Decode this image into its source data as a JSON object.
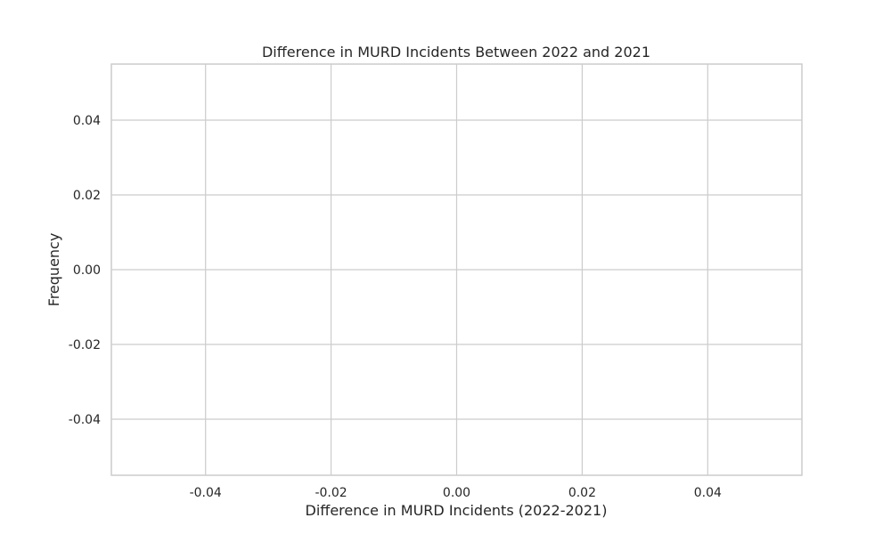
{
  "chart_data": {
    "type": "bar",
    "title": "Difference in MURD Incidents Between 2022 and 2021",
    "xlabel": "Difference in MURD Incidents (2022-2021)",
    "ylabel": "Frequency",
    "xlim": [
      -0.055,
      0.055
    ],
    "ylim": [
      -0.055,
      0.055
    ],
    "xticks": [
      -0.04,
      -0.02,
      0.0,
      0.02,
      0.04
    ],
    "yticks": [
      -0.04,
      -0.02,
      0.0,
      0.02,
      0.04
    ],
    "xtick_labels": [
      "-0.04",
      "-0.02",
      "0.00",
      "0.02",
      "0.04"
    ],
    "ytick_labels": [
      "-0.04",
      "-0.02",
      "0.00",
      "0.02",
      "0.04"
    ],
    "grid": true,
    "bins": [],
    "colors": {
      "grid": "#cccccc",
      "text": "#262626",
      "background": "#ffffff"
    }
  }
}
